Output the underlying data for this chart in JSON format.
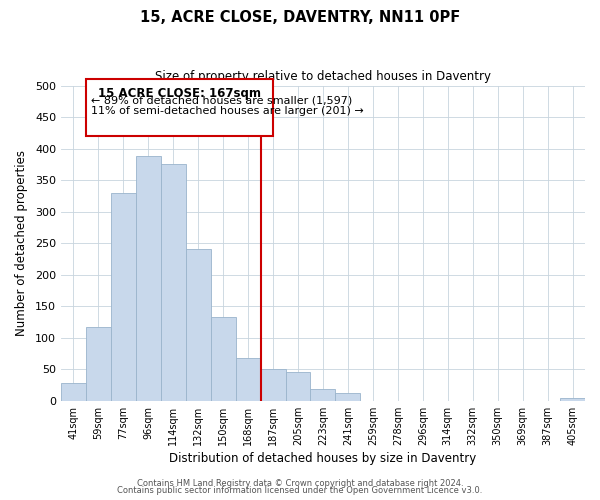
{
  "title": "15, ACRE CLOSE, DAVENTRY, NN11 0PF",
  "subtitle": "Size of property relative to detached houses in Daventry",
  "xlabel": "Distribution of detached houses by size in Daventry",
  "ylabel": "Number of detached properties",
  "bar_labels": [
    "41sqm",
    "59sqm",
    "77sqm",
    "96sqm",
    "114sqm",
    "132sqm",
    "150sqm",
    "168sqm",
    "187sqm",
    "205sqm",
    "223sqm",
    "241sqm",
    "259sqm",
    "278sqm",
    "296sqm",
    "314sqm",
    "332sqm",
    "350sqm",
    "369sqm",
    "387sqm",
    "405sqm"
  ],
  "bar_values": [
    28,
    117,
    330,
    388,
    375,
    240,
    133,
    68,
    50,
    45,
    18,
    13,
    0,
    0,
    0,
    0,
    0,
    0,
    0,
    0,
    5
  ],
  "bar_color": "#c8d8eb",
  "bar_edge_color": "#9ab4cc",
  "vline_x": 7.5,
  "vline_color": "#cc0000",
  "annotation_title": "15 ACRE CLOSE: 167sqm",
  "annotation_line1": "← 89% of detached houses are smaller (1,597)",
  "annotation_line2": "11% of semi-detached houses are larger (201) →",
  "box_edge_color": "#cc0000",
  "ylim": [
    0,
    500
  ],
  "yticks": [
    0,
    50,
    100,
    150,
    200,
    250,
    300,
    350,
    400,
    450,
    500
  ],
  "footer_line1": "Contains HM Land Registry data © Crown copyright and database right 2024.",
  "footer_line2": "Contains public sector information licensed under the Open Government Licence v3.0.",
  "background_color": "#ffffff"
}
